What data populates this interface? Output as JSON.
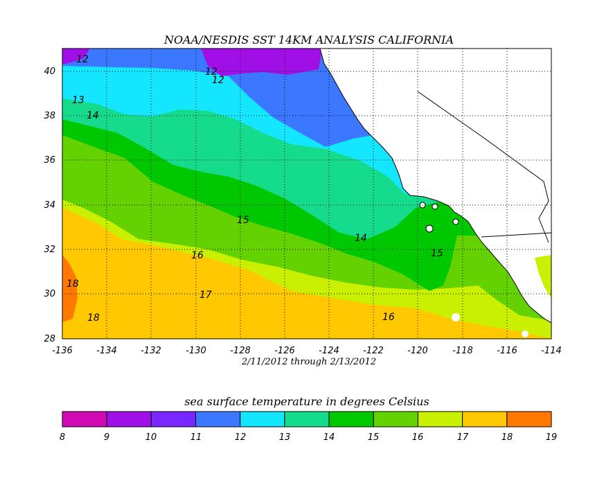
{
  "title": "NOAA/NESDIS SST 14KM ANALYSIS CALIFORNIA",
  "date_range": "2/11/2012 through 2/13/2012",
  "legend": {
    "title": "sea surface temperature in degrees Celsius",
    "labels": [
      "8",
      "9",
      "10",
      "11",
      "12",
      "13",
      "14",
      "15",
      "16",
      "17",
      "18",
      "19"
    ],
    "colors": [
      "#d20ab4",
      "#a00fe6",
      "#7828ff",
      "#3c78ff",
      "#14e6ff",
      "#14dc8c",
      "#00c800",
      "#64d200",
      "#c8f000",
      "#ffc800",
      "#ff7800"
    ]
  },
  "axes": {
    "x_ticks": [
      "-136",
      "-134",
      "-132",
      "-130",
      "-128",
      "-126",
      "-124",
      "-122",
      "-120",
      "-118",
      "-116",
      "-114"
    ],
    "y_ticks": [
      "28",
      "30",
      "32",
      "34",
      "36",
      "38",
      "40"
    ]
  },
  "contour_labels": [
    "12",
    "12",
    "12",
    "13",
    "14",
    "15",
    "16",
    "17",
    "18",
    "18",
    "14",
    "15",
    "16"
  ],
  "colors": {
    "land": "#ffffff",
    "grid": "#000000"
  }
}
